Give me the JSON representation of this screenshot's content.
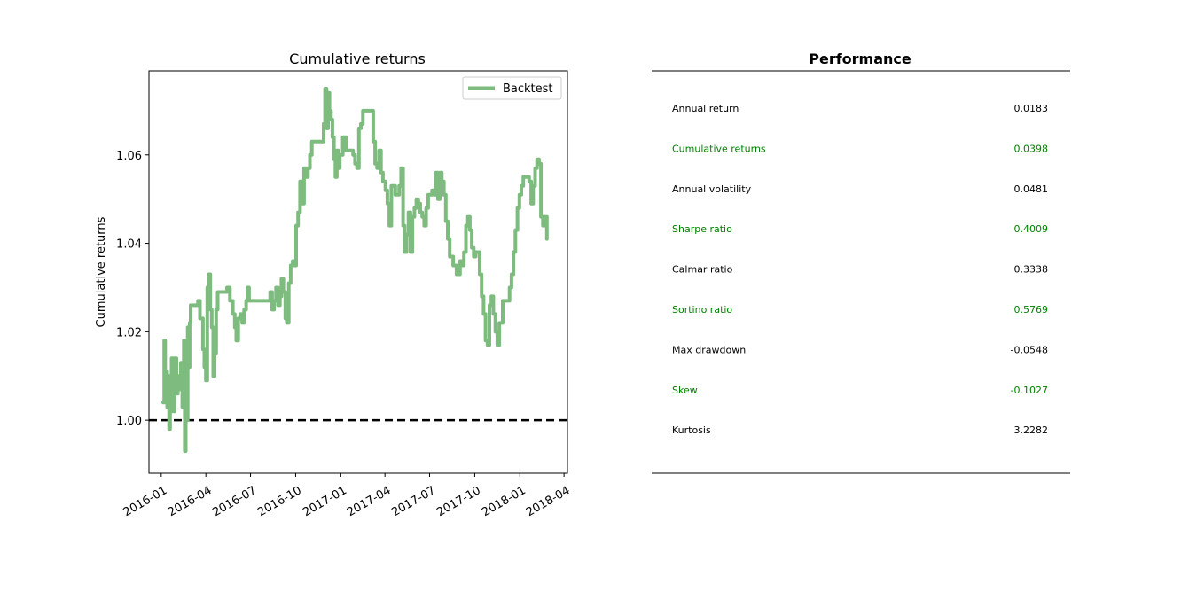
{
  "chart_data": [
    {
      "type": "line",
      "title": "Cumulative returns",
      "xlabel": "",
      "ylabel": "Cumulative returns",
      "legend": {
        "placement": "top-right",
        "entries": [
          "Backtest"
        ]
      },
      "ylim": [
        0.988,
        1.079
      ],
      "xlim": [
        "2015-12-07",
        "2018-04-08"
      ],
      "y_ticks": [
        1.0,
        1.02,
        1.04,
        1.06
      ],
      "y_tick_labels": [
        "1.00",
        "1.02",
        "1.04",
        "1.06"
      ],
      "x_ticks": [
        "2016-01-01",
        "2016-04-01",
        "2016-07-01",
        "2016-10-01",
        "2017-01-01",
        "2017-04-01",
        "2017-07-01",
        "2017-10-01",
        "2018-01-01",
        "2018-04-01"
      ],
      "x_tick_labels": [
        "2016-01",
        "2016-04",
        "2016-07",
        "2016-10",
        "2017-01",
        "2017-04",
        "2017-07",
        "2017-10",
        "2018-01",
        "2018-04"
      ],
      "baseline": {
        "y": 1.0,
        "style": "dashed",
        "color": "#000000"
      },
      "series": [
        {
          "name": "Backtest",
          "color": "#7dbb7f",
          "x": [
            "2016-01-05",
            "2016-01-07",
            "2016-01-09",
            "2016-01-11",
            "2016-01-13",
            "2016-01-15",
            "2016-01-17",
            "2016-01-19",
            "2016-01-22",
            "2016-01-25",
            "2016-01-28",
            "2016-02-01",
            "2016-02-04",
            "2016-02-07",
            "2016-02-10",
            "2016-02-13",
            "2016-02-16",
            "2016-02-18",
            "2016-02-20",
            "2016-02-22",
            "2016-02-24",
            "2016-02-26",
            "2016-02-28",
            "2016-03-01",
            "2016-03-04",
            "2016-03-08",
            "2016-03-12",
            "2016-03-16",
            "2016-03-20",
            "2016-03-26",
            "2016-03-29",
            "2016-04-01",
            "2016-04-04",
            "2016-04-07",
            "2016-04-10",
            "2016-04-13",
            "2016-04-16",
            "2016-04-19",
            "2016-04-22",
            "2016-04-25",
            "2016-04-28",
            "2016-05-01",
            "2016-05-04",
            "2016-05-08",
            "2016-05-14",
            "2016-05-20",
            "2016-05-26",
            "2016-05-30",
            "2016-06-02",
            "2016-06-06",
            "2016-06-10",
            "2016-06-14",
            "2016-06-18",
            "2016-06-22",
            "2016-06-25",
            "2016-06-28",
            "2016-07-03",
            "2016-07-10",
            "2016-07-17",
            "2016-07-24",
            "2016-07-31",
            "2016-08-07",
            "2016-08-10",
            "2016-08-14",
            "2016-08-18",
            "2016-08-22",
            "2016-08-26",
            "2016-08-30",
            "2016-09-02",
            "2016-09-06",
            "2016-09-10",
            "2016-09-13",
            "2016-09-17",
            "2016-09-21",
            "2016-09-25",
            "2016-09-28",
            "2016-10-02",
            "2016-10-06",
            "2016-10-10",
            "2016-10-14",
            "2016-10-18",
            "2016-10-22",
            "2016-10-26",
            "2016-10-30",
            "2016-11-03",
            "2016-11-10",
            "2016-11-17",
            "2016-11-24",
            "2016-11-27",
            "2016-11-30",
            "2016-12-03",
            "2016-12-06",
            "2016-12-09",
            "2016-12-12",
            "2016-12-15",
            "2016-12-18",
            "2016-12-21",
            "2016-12-24",
            "2016-12-27",
            "2016-12-30",
            "2017-01-05",
            "2017-01-12",
            "2017-01-19",
            "2017-01-26",
            "2017-01-30",
            "2017-02-03",
            "2017-02-07",
            "2017-02-11",
            "2017-02-15",
            "2017-02-22",
            "2017-03-01",
            "2017-03-08",
            "2017-03-12",
            "2017-03-16",
            "2017-03-20",
            "2017-03-24",
            "2017-03-28",
            "2017-04-02",
            "2017-04-06",
            "2017-04-10",
            "2017-04-14",
            "2017-04-18",
            "2017-04-22",
            "2017-04-26",
            "2017-04-30",
            "2017-05-04",
            "2017-05-08",
            "2017-05-11",
            "2017-05-15",
            "2017-05-19",
            "2017-05-23",
            "2017-05-27",
            "2017-05-31",
            "2017-06-04",
            "2017-06-08",
            "2017-06-12",
            "2017-06-16",
            "2017-06-20",
            "2017-06-24",
            "2017-06-28",
            "2017-07-02",
            "2017-07-06",
            "2017-07-10",
            "2017-07-14",
            "2017-07-18",
            "2017-07-22",
            "2017-07-26",
            "2017-07-30",
            "2017-08-03",
            "2017-08-07",
            "2017-08-11",
            "2017-08-18",
            "2017-08-25",
            "2017-09-01",
            "2017-09-05",
            "2017-09-09",
            "2017-09-13",
            "2017-09-17",
            "2017-09-21",
            "2017-09-25",
            "2017-09-29",
            "2017-10-03",
            "2017-10-07",
            "2017-10-11",
            "2017-10-15",
            "2017-10-19",
            "2017-10-23",
            "2017-10-27",
            "2017-10-31",
            "2017-11-04",
            "2017-11-08",
            "2017-11-12",
            "2017-11-16",
            "2017-11-20",
            "2017-11-27",
            "2017-12-04",
            "2017-12-11",
            "2017-12-15",
            "2017-12-19",
            "2017-12-23",
            "2017-12-27",
            "2017-12-31",
            "2018-01-04",
            "2018-01-08",
            "2018-01-12",
            "2018-01-16",
            "2018-01-20",
            "2018-01-24",
            "2018-01-28",
            "2018-02-01",
            "2018-02-05",
            "2018-02-09",
            "2018-02-13",
            "2018-02-17",
            "2018-02-21",
            "2018-02-25"
          ],
          "y": [
            1.004,
            1.018,
            1.008,
            1.011,
            1.003,
            1.01,
            0.998,
            1.007,
            1.014,
            1.002,
            1.014,
            1.006,
            1.01,
            1.007,
            1.013,
            1.003,
            1.018,
            0.993,
            1.014,
            1.0,
            1.021,
            1.012,
            1.022,
            1.026,
            1.026,
            1.026,
            1.026,
            1.027,
            1.023,
            1.016,
            1.012,
            1.009,
            1.03,
            1.033,
            1.025,
            1.021,
            1.01,
            1.015,
            1.025,
            1.029,
            1.029,
            1.029,
            1.029,
            1.029,
            1.03,
            1.027,
            1.024,
            1.021,
            1.018,
            1.023,
            1.024,
            1.022,
            1.025,
            1.027,
            1.03,
            1.027,
            1.027,
            1.027,
            1.027,
            1.027,
            1.027,
            1.027,
            1.029,
            1.025,
            1.027,
            1.03,
            1.026,
            1.028,
            1.032,
            1.029,
            1.023,
            1.022,
            1.031,
            1.035,
            1.036,
            1.035,
            1.044,
            1.047,
            1.054,
            1.049,
            1.057,
            1.055,
            1.057,
            1.06,
            1.063,
            1.063,
            1.063,
            1.063,
            1.067,
            1.075,
            1.066,
            1.074,
            1.07,
            1.068,
            1.064,
            1.059,
            1.055,
            1.061,
            1.057,
            1.06,
            1.064,
            1.061,
            1.061,
            1.06,
            1.058,
            1.057,
            1.066,
            1.067,
            1.07,
            1.07,
            1.07,
            1.063,
            1.058,
            1.057,
            1.061,
            1.056,
            1.054,
            1.052,
            1.049,
            1.044,
            1.053,
            1.053,
            1.051,
            1.051,
            1.053,
            1.057,
            1.044,
            1.038,
            1.042,
            1.047,
            1.038,
            1.046,
            1.048,
            1.05,
            1.049,
            1.047,
            1.046,
            1.044,
            1.048,
            1.051,
            1.051,
            1.052,
            1.051,
            1.056,
            1.05,
            1.056,
            1.054,
            1.051,
            1.045,
            1.041,
            1.037,
            1.035,
            1.033,
            1.036,
            1.035,
            1.038,
            1.044,
            1.046,
            1.043,
            1.039,
            1.037,
            1.038,
            1.038,
            1.033,
            1.028,
            1.024,
            1.018,
            1.017,
            1.026,
            1.028,
            1.024,
            1.02,
            1.017,
            1.022,
            1.027,
            1.027,
            1.03,
            1.033,
            1.038,
            1.043,
            1.048,
            1.051,
            1.053,
            1.055,
            1.055,
            1.055,
            1.054,
            1.049,
            1.053,
            1.057,
            1.059,
            1.058,
            1.046,
            1.044,
            1.046,
            1.041
          ]
        }
      ]
    },
    {
      "type": "table",
      "title": "Performance",
      "rows": [
        {
          "label": "Annual return",
          "value": "0.0183",
          "highlight": false
        },
        {
          "label": "Cumulative returns",
          "value": "0.0398",
          "highlight": true
        },
        {
          "label": "Annual volatility",
          "value": "0.0481",
          "highlight": false
        },
        {
          "label": "Sharpe ratio",
          "value": "0.4009",
          "highlight": true
        },
        {
          "label": "Calmar ratio",
          "value": "0.3338",
          "highlight": false
        },
        {
          "label": "Sortino ratio",
          "value": "0.5769",
          "highlight": true
        },
        {
          "label": "Max drawdown",
          "value": "-0.0548",
          "highlight": false
        },
        {
          "label": "Skew",
          "value": "-0.1027",
          "highlight": true
        },
        {
          "label": "Kurtosis",
          "value": "3.2282",
          "highlight": false
        }
      ],
      "colors": {
        "normal": "#000000",
        "highlight": "#008000"
      }
    }
  ]
}
